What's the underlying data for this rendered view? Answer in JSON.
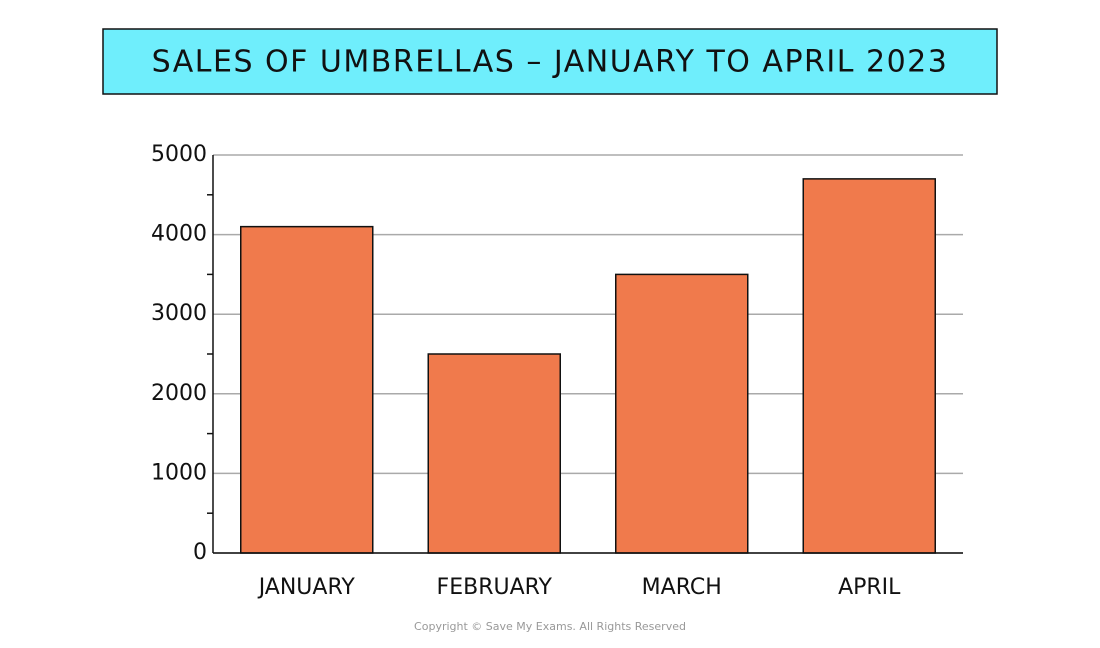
{
  "chart_data": {
    "type": "bar",
    "title": "SALES OF UMBRELLAS – JANUARY TO APRIL 2023",
    "categories": [
      "JANUARY",
      "FEBRUARY",
      "MARCH",
      "APRIL"
    ],
    "values": [
      4100,
      2500,
      3500,
      4700
    ],
    "color": "#f07a4c",
    "ylim": [
      0,
      5000
    ],
    "yticks": [
      0,
      1000,
      2000,
      3000,
      4000,
      5000
    ],
    "minor_yticks": [
      500,
      1500,
      2500,
      3500,
      4500
    ],
    "grid": true,
    "note": "Copyright © Save My Exams. All Rights Reserved"
  }
}
